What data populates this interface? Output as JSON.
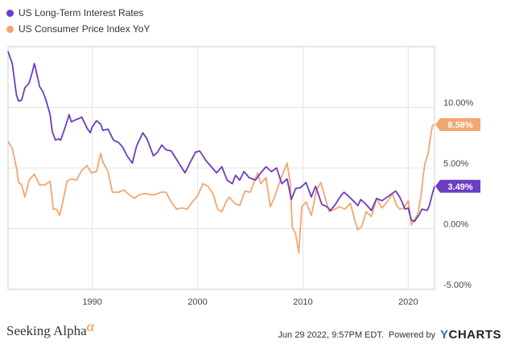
{
  "legend": {
    "items": [
      {
        "label": "US Long-Term Interest Rates",
        "color": "#6a3dc2"
      },
      {
        "label": "US Consumer Price Index YoY",
        "color": "#f4a66f"
      }
    ]
  },
  "footer": {
    "brand": "Seeking Alpha",
    "brand_mark": "α",
    "timestamp": "Jun 29 2022, 9:57PM EDT.",
    "powered_by": "Powered by",
    "ycharts_y": "Y",
    "ycharts_rest": "CHARTS"
  },
  "chart_data": {
    "type": "line",
    "title": "",
    "xlabel": "",
    "ylabel": "",
    "xlim": [
      1982.0,
      2022.5
    ],
    "ylim": [
      -5,
      15
    ],
    "x_ticks": [
      1990,
      2000,
      2010,
      2020
    ],
    "x_tick_labels": [
      "1990",
      "2000",
      "2010",
      "2020"
    ],
    "y_ticks": [
      -5,
      0,
      5,
      10
    ],
    "y_tick_labels": [
      "-5.00%",
      "0.00%",
      "5.00%",
      "10.00%"
    ],
    "grid": true,
    "legend_position": "top-left",
    "series": [
      {
        "name": "US Long-Term Interest Rates",
        "color": "#6a3dc2",
        "last_value_label": "3.49%",
        "last_value": 3.49,
        "points": [
          [
            1982.0,
            14.6
          ],
          [
            1982.4,
            13.6
          ],
          [
            1982.8,
            11.0
          ],
          [
            1983.0,
            10.5
          ],
          [
            1983.3,
            10.6
          ],
          [
            1983.6,
            11.6
          ],
          [
            1984.0,
            12.0
          ],
          [
            1984.3,
            12.9
          ],
          [
            1984.5,
            13.6
          ],
          [
            1984.8,
            12.5
          ],
          [
            1985.0,
            11.7
          ],
          [
            1985.3,
            11.3
          ],
          [
            1985.6,
            10.6
          ],
          [
            1986.0,
            9.4
          ],
          [
            1986.2,
            8.0
          ],
          [
            1986.5,
            7.3
          ],
          [
            1986.8,
            7.4
          ],
          [
            1987.0,
            7.3
          ],
          [
            1987.4,
            8.3
          ],
          [
            1987.8,
            9.4
          ],
          [
            1988.0,
            8.8
          ],
          [
            1988.5,
            9.0
          ],
          [
            1988.8,
            9.1
          ],
          [
            1989.0,
            9.2
          ],
          [
            1989.5,
            8.3
          ],
          [
            1989.8,
            7.9
          ],
          [
            1990.0,
            8.4
          ],
          [
            1990.4,
            8.9
          ],
          [
            1990.8,
            8.6
          ],
          [
            1991.0,
            8.1
          ],
          [
            1991.5,
            8.2
          ],
          [
            1992.0,
            7.3
          ],
          [
            1992.5,
            7.1
          ],
          [
            1992.9,
            6.7
          ],
          [
            1993.3,
            6.0
          ],
          [
            1993.8,
            5.4
          ],
          [
            1994.2,
            6.8
          ],
          [
            1994.8,
            7.9
          ],
          [
            1995.2,
            7.4
          ],
          [
            1995.8,
            6.0
          ],
          [
            1996.2,
            6.3
          ],
          [
            1996.6,
            6.9
          ],
          [
            1997.0,
            6.5
          ],
          [
            1997.5,
            6.4
          ],
          [
            1998.0,
            5.7
          ],
          [
            1998.8,
            4.6
          ],
          [
            1999.2,
            5.3
          ],
          [
            1999.8,
            6.3
          ],
          [
            2000.2,
            6.4
          ],
          [
            2000.8,
            5.6
          ],
          [
            2001.3,
            5.1
          ],
          [
            2001.8,
            4.6
          ],
          [
            2002.3,
            5.1
          ],
          [
            2002.8,
            4.0
          ],
          [
            2003.3,
            3.7
          ],
          [
            2003.6,
            4.4
          ],
          [
            2004.0,
            4.0
          ],
          [
            2004.4,
            4.7
          ],
          [
            2004.9,
            4.2
          ],
          [
            2005.5,
            4.0
          ],
          [
            2006.0,
            4.6
          ],
          [
            2006.5,
            5.1
          ],
          [
            2007.0,
            4.7
          ],
          [
            2007.5,
            5.0
          ],
          [
            2008.0,
            3.7
          ],
          [
            2008.5,
            4.1
          ],
          [
            2008.9,
            2.4
          ],
          [
            2009.3,
            3.3
          ],
          [
            2009.8,
            3.4
          ],
          [
            2010.3,
            3.8
          ],
          [
            2010.8,
            2.6
          ],
          [
            2011.2,
            3.5
          ],
          [
            2011.8,
            2.0
          ],
          [
            2012.3,
            1.8
          ],
          [
            2012.6,
            1.5
          ],
          [
            2013.0,
            1.9
          ],
          [
            2013.6,
            2.7
          ],
          [
            2013.9,
            3.0
          ],
          [
            2014.3,
            2.7
          ],
          [
            2014.9,
            2.2
          ],
          [
            2015.2,
            1.9
          ],
          [
            2015.5,
            2.4
          ],
          [
            2016.0,
            2.0
          ],
          [
            2016.5,
            1.5
          ],
          [
            2017.0,
            2.5
          ],
          [
            2017.5,
            2.3
          ],
          [
            2018.0,
            2.6
          ],
          [
            2018.8,
            3.1
          ],
          [
            2019.2,
            2.6
          ],
          [
            2019.7,
            1.6
          ],
          [
            2020.0,
            1.7
          ],
          [
            2020.3,
            0.7
          ],
          [
            2020.6,
            0.6
          ],
          [
            2021.0,
            1.1
          ],
          [
            2021.3,
            1.6
          ],
          [
            2021.8,
            1.5
          ],
          [
            2022.0,
            1.9
          ],
          [
            2022.3,
            2.9
          ],
          [
            2022.5,
            3.49
          ]
        ]
      },
      {
        "name": "US Consumer Price Index YoY",
        "color": "#f4a66f",
        "last_value_label": "8.58%",
        "last_value": 8.58,
        "points": [
          [
            1982.0,
            7.2
          ],
          [
            1982.4,
            6.6
          ],
          [
            1982.8,
            5.0
          ],
          [
            1983.0,
            3.8
          ],
          [
            1983.3,
            3.6
          ],
          [
            1983.6,
            2.6
          ],
          [
            1984.0,
            4.0
          ],
          [
            1984.5,
            4.5
          ],
          [
            1985.0,
            3.6
          ],
          [
            1985.5,
            3.6
          ],
          [
            1986.0,
            3.9
          ],
          [
            1986.3,
            1.6
          ],
          [
            1986.6,
            1.6
          ],
          [
            1986.9,
            1.1
          ],
          [
            1987.2,
            2.2
          ],
          [
            1987.6,
            3.9
          ],
          [
            1988.0,
            4.1
          ],
          [
            1988.5,
            4.0
          ],
          [
            1989.0,
            4.8
          ],
          [
            1989.5,
            5.2
          ],
          [
            1989.9,
            4.6
          ],
          [
            1990.4,
            4.7
          ],
          [
            1990.8,
            6.2
          ],
          [
            1991.0,
            5.5
          ],
          [
            1991.5,
            4.7
          ],
          [
            1991.9,
            3.0
          ],
          [
            1992.5,
            3.0
          ],
          [
            1993.0,
            3.2
          ],
          [
            1993.5,
            2.8
          ],
          [
            1994.0,
            2.5
          ],
          [
            1994.5,
            2.8
          ],
          [
            1995.0,
            2.9
          ],
          [
            1995.5,
            2.8
          ],
          [
            1996.0,
            2.8
          ],
          [
            1996.5,
            3.0
          ],
          [
            1997.0,
            3.0
          ],
          [
            1997.5,
            2.2
          ],
          [
            1998.0,
            1.6
          ],
          [
            1998.5,
            1.7
          ],
          [
            1999.0,
            1.6
          ],
          [
            1999.5,
            2.2
          ],
          [
            2000.0,
            2.7
          ],
          [
            2000.5,
            3.7
          ],
          [
            2001.0,
            3.5
          ],
          [
            2001.5,
            2.8
          ],
          [
            2001.9,
            1.6
          ],
          [
            2002.3,
            1.4
          ],
          [
            2002.7,
            2.2
          ],
          [
            2003.0,
            2.6
          ],
          [
            2003.5,
            2.1
          ],
          [
            2004.0,
            1.9
          ],
          [
            2004.5,
            3.1
          ],
          [
            2005.0,
            3.0
          ],
          [
            2005.7,
            4.6
          ],
          [
            2006.0,
            3.7
          ],
          [
            2006.5,
            4.2
          ],
          [
            2006.9,
            1.8
          ],
          [
            2007.3,
            2.6
          ],
          [
            2007.9,
            4.1
          ],
          [
            2008.5,
            5.4
          ],
          [
            2008.8,
            3.7
          ],
          [
            2009.0,
            0.1
          ],
          [
            2009.3,
            -0.4
          ],
          [
            2009.6,
            -2.0
          ],
          [
            2009.9,
            1.8
          ],
          [
            2010.3,
            2.2
          ],
          [
            2010.8,
            1.1
          ],
          [
            2011.3,
            3.2
          ],
          [
            2011.7,
            3.8
          ],
          [
            2012.0,
            2.9
          ],
          [
            2012.5,
            1.4
          ],
          [
            2013.0,
            1.6
          ],
          [
            2013.5,
            1.8
          ],
          [
            2014.0,
            1.6
          ],
          [
            2014.5,
            2.1
          ],
          [
            2014.9,
            0.8
          ],
          [
            2015.2,
            -0.1
          ],
          [
            2015.6,
            0.2
          ],
          [
            2016.0,
            1.4
          ],
          [
            2016.5,
            1.0
          ],
          [
            2017.0,
            2.5
          ],
          [
            2017.5,
            1.7
          ],
          [
            2018.0,
            2.2
          ],
          [
            2018.5,
            2.9
          ],
          [
            2018.9,
            1.9
          ],
          [
            2019.2,
            1.6
          ],
          [
            2019.6,
            1.7
          ],
          [
            2020.0,
            2.3
          ],
          [
            2020.3,
            0.3
          ],
          [
            2020.5,
            0.6
          ],
          [
            2020.9,
            1.2
          ],
          [
            2021.2,
            2.6
          ],
          [
            2021.4,
            4.2
          ],
          [
            2021.6,
            5.4
          ],
          [
            2021.9,
            6.2
          ],
          [
            2022.1,
            7.5
          ],
          [
            2022.3,
            8.5
          ],
          [
            2022.5,
            8.58
          ]
        ]
      }
    ]
  }
}
